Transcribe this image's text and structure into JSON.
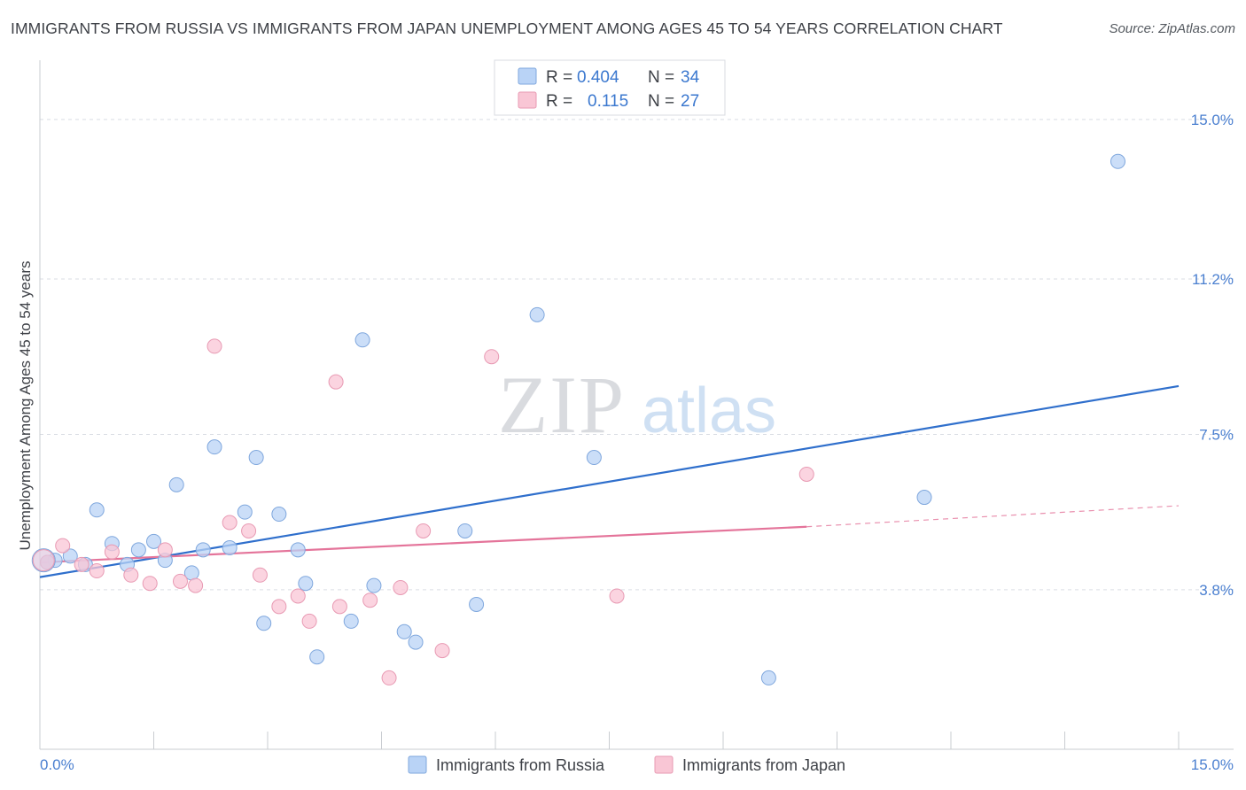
{
  "title": "IMMIGRANTS FROM RUSSIA VS IMMIGRANTS FROM JAPAN UNEMPLOYMENT AMONG AGES 45 TO 54 YEARS CORRELATION CHART",
  "source": "Source: ZipAtlas.com",
  "watermark": {
    "zip": "ZIP",
    "atlas": "atlas"
  },
  "colors": {
    "russia_fill": "#b9d3f6",
    "russia_stroke": "#7fa7dd",
    "russia_line": "#2f6fcc",
    "japan_fill": "#f9c6d5",
    "japan_stroke": "#e89ab3",
    "japan_line": "#e4749a",
    "value_text": "#3b78cf",
    "grid": "#d9dde3"
  },
  "legend": {
    "r_label": "R =",
    "n_label": "N =",
    "rows": [
      {
        "r": "0.404",
        "n": "34"
      },
      {
        "r": "0.115",
        "n": "27"
      }
    ]
  },
  "chart_data": {
    "type": "scatter",
    "xlabel": "",
    "ylabel": "Unemployment Among Ages 45 to 54 years",
    "xlim": [
      0,
      15
    ],
    "ylim": [
      0,
      16.2
    ],
    "x_tick_labels": [
      "0.0%",
      "15.0%"
    ],
    "y_ticks": [
      3.8,
      7.5,
      11.2,
      15.0
    ],
    "y_tick_labels": [
      "3.8%",
      "7.5%",
      "11.2%",
      "15.0%"
    ],
    "grid": true,
    "series": [
      {
        "name": "Immigrants from Russia",
        "points": [
          [
            0.2,
            4.5
          ],
          [
            0.4,
            4.6
          ],
          [
            0.6,
            4.4
          ],
          [
            0.75,
            5.7
          ],
          [
            0.95,
            4.9
          ],
          [
            1.15,
            4.4
          ],
          [
            1.3,
            4.75
          ],
          [
            1.5,
            4.95
          ],
          [
            1.65,
            4.5
          ],
          [
            1.8,
            6.3
          ],
          [
            2.0,
            4.2
          ],
          [
            2.15,
            4.75
          ],
          [
            2.3,
            7.2
          ],
          [
            2.5,
            4.8
          ],
          [
            2.7,
            5.65
          ],
          [
            2.85,
            6.95
          ],
          [
            2.95,
            3.0
          ],
          [
            3.15,
            5.6
          ],
          [
            3.4,
            4.75
          ],
          [
            3.5,
            3.95
          ],
          [
            3.65,
            2.2
          ],
          [
            4.1,
            3.05
          ],
          [
            4.25,
            9.75
          ],
          [
            4.4,
            3.9
          ],
          [
            4.8,
            2.8
          ],
          [
            4.95,
            2.55
          ],
          [
            5.6,
            5.2
          ],
          [
            5.75,
            3.45
          ],
          [
            6.55,
            10.35
          ],
          [
            7.3,
            6.95
          ],
          [
            9.6,
            1.7
          ],
          [
            11.65,
            6.0
          ],
          [
            14.2,
            14.0
          ],
          [
            0.1,
            4.45
          ]
        ],
        "trend": {
          "x": [
            0,
            15
          ],
          "y": [
            4.1,
            8.65
          ]
        }
      },
      {
        "name": "Immigrants from Japan",
        "points": [
          [
            0.1,
            4.45
          ],
          [
            0.3,
            4.85
          ],
          [
            0.55,
            4.4
          ],
          [
            0.75,
            4.25
          ],
          [
            0.95,
            4.7
          ],
          [
            1.2,
            4.15
          ],
          [
            1.45,
            3.95
          ],
          [
            1.65,
            4.75
          ],
          [
            1.85,
            4.0
          ],
          [
            2.05,
            3.9
          ],
          [
            2.3,
            9.6
          ],
          [
            2.5,
            5.4
          ],
          [
            2.75,
            5.2
          ],
          [
            2.9,
            4.15
          ],
          [
            3.15,
            3.4
          ],
          [
            3.4,
            3.65
          ],
          [
            3.55,
            3.05
          ],
          [
            3.9,
            8.75
          ],
          [
            3.95,
            3.4
          ],
          [
            4.35,
            3.55
          ],
          [
            4.6,
            1.7
          ],
          [
            4.75,
            3.85
          ],
          [
            5.05,
            5.2
          ],
          [
            5.3,
            2.35
          ],
          [
            5.95,
            9.35
          ],
          [
            7.6,
            3.65
          ],
          [
            10.1,
            6.55
          ]
        ],
        "trend": {
          "x": [
            0,
            10.1
          ],
          "y": [
            4.45,
            5.3
          ]
        },
        "trend_dashed": {
          "x": [
            10.1,
            15
          ],
          "y": [
            5.3,
            5.8
          ]
        }
      }
    ]
  },
  "bottom_legend": [
    {
      "label": "Immigrants from Russia"
    },
    {
      "label": "Immigrants from Japan"
    }
  ]
}
